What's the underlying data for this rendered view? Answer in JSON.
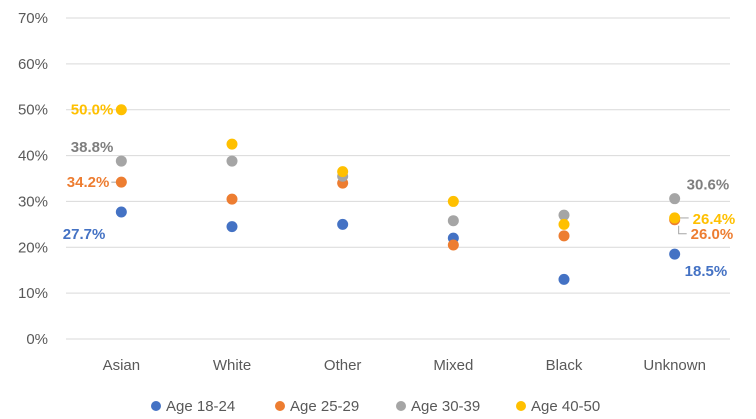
{
  "chart_data": {
    "type": "scatter",
    "categories": [
      "Asian",
      "White",
      "Other",
      "Mixed",
      "Black",
      "Unknown"
    ],
    "ylim": [
      0,
      70
    ],
    "yticks": [
      0,
      10,
      20,
      30,
      40,
      50,
      60,
      70
    ],
    "ytick_labels": [
      "0%",
      "10%",
      "20%",
      "30%",
      "40%",
      "50%",
      "60%",
      "70%"
    ],
    "grid": true,
    "legend_position": "bottom",
    "series": [
      {
        "name": "Age 18-24",
        "color": "#4472C4",
        "values": [
          27.7,
          24.5,
          25.0,
          22.0,
          13.0,
          18.5
        ]
      },
      {
        "name": "Age 25-29",
        "color": "#ED7D31",
        "values": [
          34.2,
          30.5,
          34.0,
          20.5,
          22.5,
          26.0
        ]
      },
      {
        "name": "Age 30-39",
        "color": "#A5A5A5",
        "values": [
          38.8,
          38.8,
          35.5,
          25.8,
          27.0,
          30.6
        ]
      },
      {
        "name": "Age 40-50",
        "color": "#FFC000",
        "values": [
          50.0,
          42.5,
          36.5,
          30.0,
          25.0,
          26.4
        ]
      }
    ],
    "data_labels": [
      {
        "series": 3,
        "index": 0,
        "text": "50.0%"
      },
      {
        "series": 2,
        "index": 0,
        "text": "38.8%"
      },
      {
        "series": 1,
        "index": 0,
        "text": "34.2%"
      },
      {
        "series": 0,
        "index": 0,
        "text": "27.7%"
      },
      {
        "series": 2,
        "index": 5,
        "text": "30.6%"
      },
      {
        "series": 3,
        "index": 5,
        "text": "26.4%"
      },
      {
        "series": 1,
        "index": 5,
        "text": "26.0%"
      },
      {
        "series": 0,
        "index": 5,
        "text": "18.5%"
      }
    ]
  }
}
